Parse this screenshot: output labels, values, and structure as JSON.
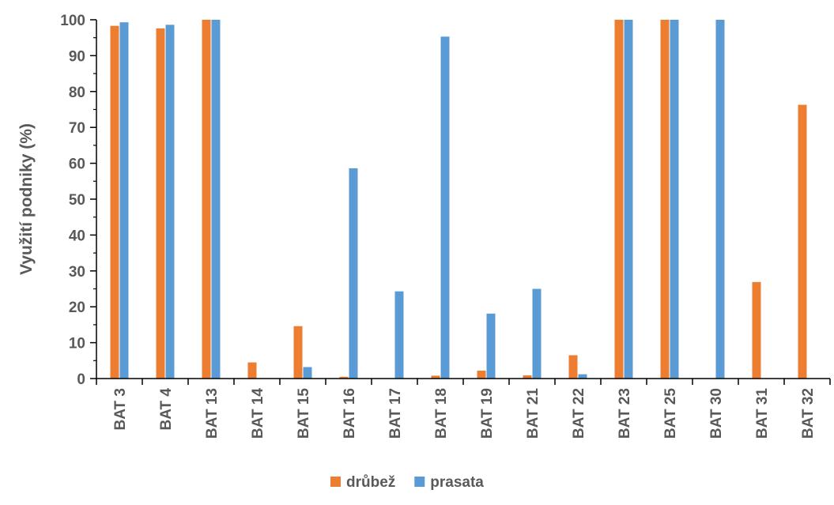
{
  "chart_data": {
    "type": "bar",
    "categories": [
      "BAT 3",
      "BAT 4",
      "BAT 13",
      "BAT 14",
      "BAT 15",
      "BAT 16",
      "BAT 17",
      "BAT 18",
      "BAT 19",
      "BAT 21",
      "BAT 22",
      "BAT 23",
      "BAT 25",
      "BAT 30",
      "BAT 31",
      "BAT 32"
    ],
    "series": [
      {
        "name": "drůbež",
        "color": "#ed7d31",
        "values": [
          98.3,
          97.6,
          100,
          4.5,
          14.6,
          0.5,
          0,
          0.8,
          2.2,
          0.9,
          6.5,
          100,
          100,
          0,
          26.9,
          76.3
        ]
      },
      {
        "name": "prasata",
        "color": "#5b9bd5",
        "values": [
          99.3,
          98.6,
          100,
          0,
          3.2,
          58.6,
          24.3,
          95.3,
          18.1,
          25.0,
          1.2,
          100,
          100,
          100,
          0,
          0
        ]
      }
    ],
    "ylabel": "Využití podniky (%)",
    "xlabel": "",
    "title": "",
    "ylim": [
      0,
      100
    ],
    "yticks": [
      "0",
      "10",
      "20",
      "30",
      "40",
      "50",
      "60",
      "70",
      "80",
      "90",
      "100"
    ],
    "grid": false,
    "legend_position": "bottom"
  }
}
